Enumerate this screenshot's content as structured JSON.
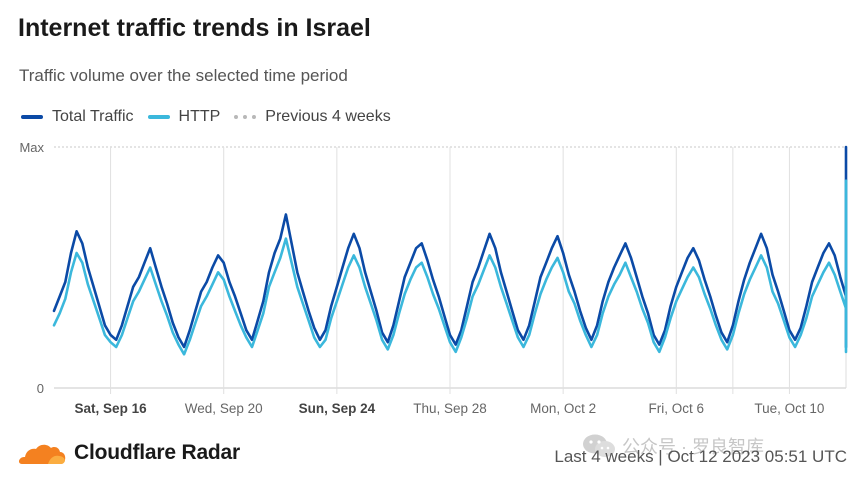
{
  "header": {
    "title": "Internet traffic trends in Israel",
    "subtitle": "Traffic volume over the selected time period"
  },
  "legend": {
    "total_label": "Total Traffic",
    "http_label": "HTTP",
    "previous_label": "Previous 4 weeks"
  },
  "colors": {
    "total": "#0b4aa6",
    "http": "#3bb8dc",
    "previous": "#b8b8b8",
    "brand_orange": "#f48120"
  },
  "footer": {
    "brand": "Cloudflare Radar",
    "range_text": "Last 4 weeks | Oct 12 2023 05:51 UTC",
    "watermark_text": "公众号 · 罗良智库"
  },
  "chart_data": {
    "type": "line",
    "title": "Internet traffic trends in Israel",
    "ylabel": "Traffic volume",
    "xlabel": "",
    "y_tick_labels": [
      "Max",
      "0"
    ],
    "ylim": [
      0,
      100
    ],
    "x_range_days": [
      0,
      28
    ],
    "x_ticks": [
      {
        "day": 2.0,
        "label": "Sat, Sep 16",
        "bold": true
      },
      {
        "day": 6.0,
        "label": "Wed, Sep 20",
        "bold": false
      },
      {
        "day": 10.0,
        "label": "Sun, Sep 24",
        "bold": true
      },
      {
        "day": 14.0,
        "label": "Thu, Sep 28",
        "bold": false
      },
      {
        "day": 18.0,
        "label": "Mon, Oct 2",
        "bold": false
      },
      {
        "day": 22.0,
        "label": "Fri, Oct 6",
        "bold": false
      },
      {
        "day": 26.0,
        "label": "Tue, Oct 10",
        "bold": false
      }
    ],
    "x_gridline_days": [
      2,
      6,
      10,
      14,
      18,
      22,
      24,
      26
    ],
    "sample_step_days": 0.2,
    "series": [
      {
        "name": "Total Traffic",
        "values": [
          32,
          38,
          44,
          56,
          65,
          60,
          50,
          42,
          34,
          26,
          22,
          20,
          26,
          34,
          42,
          46,
          52,
          58,
          50,
          42,
          35,
          27,
          21,
          17,
          24,
          32,
          40,
          44,
          50,
          55,
          52,
          44,
          38,
          31,
          24,
          20,
          28,
          36,
          48,
          56,
          62,
          72,
          60,
          48,
          40,
          32,
          25,
          20,
          24,
          34,
          42,
          50,
          58,
          64,
          58,
          48,
          40,
          32,
          23,
          19,
          26,
          36,
          46,
          52,
          58,
          60,
          53,
          45,
          38,
          30,
          22,
          18,
          24,
          34,
          44,
          50,
          57,
          64,
          58,
          48,
          40,
          32,
          24,
          20,
          26,
          36,
          46,
          52,
          58,
          63,
          56,
          47,
          40,
          32,
          25,
          20,
          26,
          36,
          44,
          50,
          55,
          60,
          54,
          46,
          38,
          31,
          22,
          18,
          24,
          34,
          42,
          48,
          54,
          58,
          53,
          45,
          38,
          30,
          23,
          19,
          26,
          36,
          45,
          52,
          58,
          64,
          58,
          47,
          40,
          32,
          24,
          20,
          25,
          34,
          44,
          50,
          56,
          60,
          55,
          46,
          38,
          30,
          24,
          20,
          22,
          28,
          36,
          44,
          50,
          56,
          53,
          45,
          38,
          30,
          24,
          19,
          24,
          34,
          44,
          52,
          58,
          62,
          58,
          48,
          40,
          32,
          24,
          20,
          26,
          36,
          46,
          54,
          60,
          66,
          58,
          48,
          40,
          32,
          24,
          20,
          25,
          35,
          45,
          52,
          58,
          62,
          56,
          47,
          40,
          32,
          24,
          20,
          26,
          35,
          45,
          52,
          58,
          62,
          56,
          47,
          40,
          32,
          23,
          19,
          24,
          34,
          42,
          48,
          54,
          60,
          54,
          45,
          38,
          30,
          22,
          17,
          24,
          34,
          44,
          50,
          56,
          62,
          58,
          48,
          40,
          32,
          25,
          20,
          26,
          37,
          48,
          56,
          62,
          66,
          60,
          50,
          42,
          34,
          25,
          21,
          26,
          36,
          46,
          52,
          58,
          62,
          56,
          47,
          40,
          32,
          24,
          20,
          26,
          36,
          45,
          52,
          58,
          62,
          56,
          46,
          38,
          30,
          22,
          18,
          26,
          36,
          46,
          52,
          56,
          58,
          54,
          45,
          38,
          30,
          22,
          18,
          26,
          36,
          46,
          52,
          57,
          60,
          54,
          46,
          38,
          30,
          23,
          19,
          26,
          36,
          45,
          50,
          56,
          60,
          54,
          46,
          38,
          30,
          22,
          18,
          25,
          34,
          44,
          50,
          56,
          62,
          56,
          46,
          38,
          30,
          22,
          18,
          34,
          56,
          72,
          100,
          75,
          50,
          40,
          30,
          22,
          18,
          36,
          52,
          68,
          84,
          66,
          50,
          40,
          30,
          22,
          18,
          28,
          40,
          54,
          62,
          68,
          72,
          65,
          52,
          40,
          30,
          24,
          20,
          30,
          42,
          54,
          62,
          66,
          70,
          64,
          54,
          46,
          36,
          26,
          22,
          30,
          42,
          56,
          66,
          70,
          74,
          64,
          54,
          46,
          36,
          27,
          23,
          28,
          38,
          48,
          56,
          62,
          66,
          60,
          52,
          44,
          36,
          26,
          22,
          34,
          46,
          58,
          68,
          74,
          72,
          62,
          54,
          46,
          36,
          28,
          24
        ]
      },
      {
        "name": "HTTP",
        "values": [
          26,
          31,
          37,
          48,
          56,
          52,
          43,
          36,
          29,
          22,
          19,
          17,
          22,
          29,
          36,
          40,
          45,
          50,
          43,
          36,
          30,
          23,
          18,
          14,
          20,
          27,
          34,
          38,
          43,
          48,
          45,
          38,
          32,
          26,
          21,
          17,
          24,
          31,
          42,
          48,
          54,
          62,
          52,
          42,
          35,
          28,
          21,
          17,
          20,
          29,
          36,
          43,
          50,
          55,
          50,
          42,
          35,
          28,
          20,
          16,
          22,
          31,
          39,
          45,
          50,
          52,
          46,
          39,
          33,
          26,
          19,
          15,
          21,
          29,
          38,
          43,
          49,
          55,
          50,
          42,
          35,
          28,
          21,
          17,
          22,
          31,
          39,
          45,
          50,
          54,
          48,
          40,
          35,
          28,
          22,
          17,
          22,
          31,
          38,
          43,
          47,
          52,
          46,
          40,
          33,
          27,
          19,
          15,
          21,
          29,
          36,
          41,
          46,
          50,
          46,
          39,
          33,
          26,
          20,
          16,
          22,
          31,
          39,
          45,
          50,
          55,
          50,
          40,
          35,
          28,
          21,
          17,
          22,
          29,
          38,
          43,
          48,
          52,
          47,
          40,
          33,
          26,
          21,
          17,
          19,
          24,
          31,
          38,
          43,
          48,
          46,
          39,
          33,
          26,
          21,
          16,
          21,
          29,
          38,
          45,
          50,
          53,
          50,
          41,
          34,
          28,
          21,
          17,
          22,
          31,
          40,
          46,
          52,
          57,
          50,
          41,
          34,
          28,
          21,
          17,
          22,
          30,
          39,
          45,
          50,
          53,
          48,
          40,
          35,
          28,
          21,
          17,
          22,
          30,
          39,
          45,
          50,
          53,
          48,
          40,
          35,
          28,
          20,
          16,
          21,
          29,
          36,
          41,
          46,
          52,
          46,
          39,
          33,
          26,
          19,
          15,
          20,
          29,
          38,
          43,
          48,
          53,
          50,
          41,
          34,
          28,
          21,
          17,
          22,
          32,
          41,
          48,
          53,
          57,
          52,
          43,
          36,
          29,
          22,
          18,
          22,
          31,
          40,
          45,
          50,
          53,
          48,
          40,
          35,
          28,
          21,
          17,
          22,
          31,
          39,
          45,
          50,
          53,
          48,
          40,
          33,
          26,
          19,
          16,
          22,
          31,
          40,
          45,
          48,
          50,
          46,
          39,
          33,
          26,
          19,
          15,
          22,
          31,
          39,
          45,
          49,
          52,
          46,
          40,
          33,
          26,
          20,
          16,
          22,
          31,
          39,
          43,
          48,
          52,
          46,
          40,
          33,
          26,
          19,
          15,
          21,
          29,
          38,
          43,
          48,
          53,
          48,
          40,
          33,
          26,
          19,
          15,
          29,
          48,
          62,
          86,
          64,
          43,
          34,
          26,
          19,
          15,
          31,
          45,
          58,
          72,
          57,
          43,
          34,
          26,
          19,
          15,
          24,
          34,
          46,
          53,
          58,
          62,
          56,
          45,
          34,
          26,
          21,
          17,
          26,
          36,
          46,
          53,
          57,
          60,
          55,
          46,
          39,
          31,
          22,
          19,
          26,
          36,
          48,
          57,
          60,
          64,
          55,
          46,
          39,
          31,
          23,
          20,
          24,
          33,
          41,
          48,
          53,
          57,
          52,
          45,
          38,
          31,
          22,
          19,
          29,
          40,
          50,
          58,
          64,
          62,
          53,
          46,
          40,
          31,
          24,
          21
        ]
      }
    ]
  }
}
